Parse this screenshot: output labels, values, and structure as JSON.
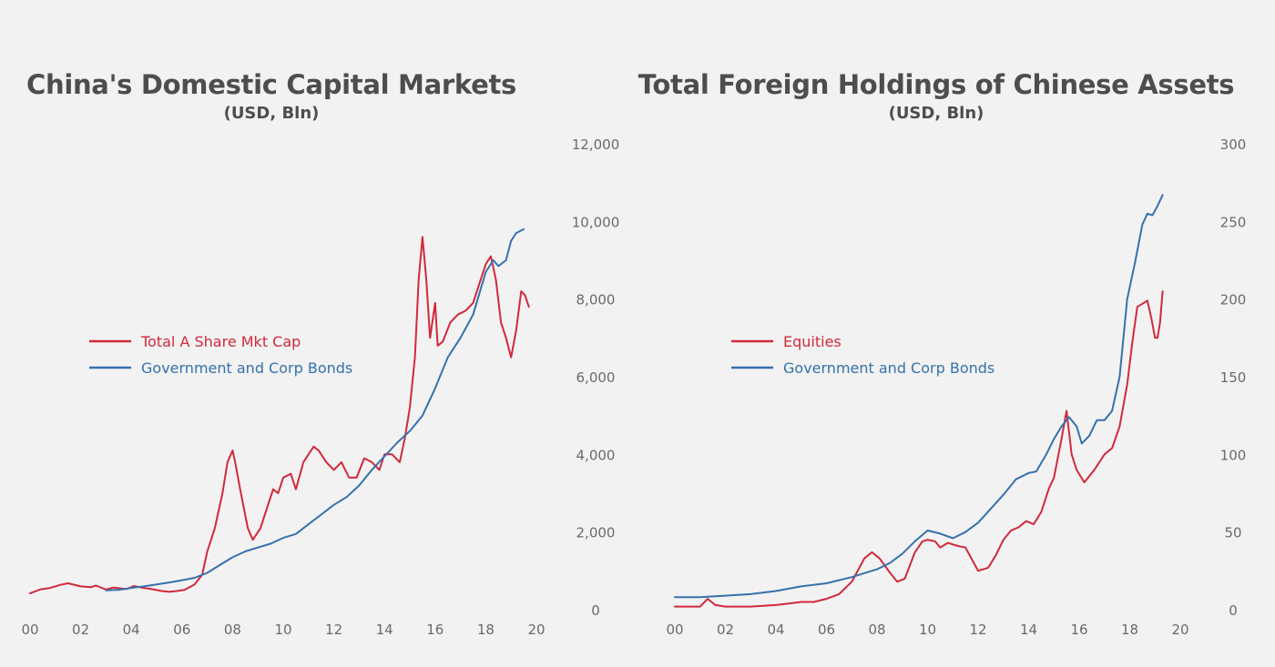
{
  "colors": {
    "red": "#d1293a",
    "blue": "#3571ad",
    "text": "#4d4d4d",
    "tick": "#6a6a6a"
  },
  "chart_data": [
    {
      "type": "line",
      "title": "China's Domestic Capital Markets",
      "subtitle": "(USD, Bln)",
      "xlim": [
        2000,
        2020
      ],
      "xticks": [
        {
          "v": 2000,
          "label": "00"
        },
        {
          "v": 2002,
          "label": "02"
        },
        {
          "v": 2004,
          "label": "04"
        },
        {
          "v": 2006,
          "label": "06"
        },
        {
          "v": 2008,
          "label": "08"
        },
        {
          "v": 2010,
          "label": "10"
        },
        {
          "v": 2012,
          "label": "12"
        },
        {
          "v": 2014,
          "label": "14"
        },
        {
          "v": 2016,
          "label": "16"
        },
        {
          "v": 2018,
          "label": "18"
        },
        {
          "v": 2020,
          "label": "20"
        }
      ],
      "ylim": [
        0,
        12000
      ],
      "yticks": [
        {
          "v": 0,
          "label": "0"
        },
        {
          "v": 2000,
          "label": "2,000"
        },
        {
          "v": 4000,
          "label": "4,000"
        },
        {
          "v": 6000,
          "label": "6,000"
        },
        {
          "v": 8000,
          "label": "8,000"
        },
        {
          "v": 10000,
          "label": "10,000"
        },
        {
          "v": 12000,
          "label": "12,000"
        }
      ],
      "legend_position": "left-center",
      "series": [
        {
          "name": "Total A Share Mkt Cap",
          "color": "#d1293a",
          "points": [
            [
              2000.0,
              420
            ],
            [
              2000.4,
              520
            ],
            [
              2000.8,
              560
            ],
            [
              2001.2,
              640
            ],
            [
              2001.5,
              680
            ],
            [
              2002.0,
              600
            ],
            [
              2002.4,
              580
            ],
            [
              2002.6,
              620
            ],
            [
              2003.0,
              520
            ],
            [
              2003.3,
              570
            ],
            [
              2003.8,
              530
            ],
            [
              2004.1,
              610
            ],
            [
              2004.4,
              570
            ],
            [
              2004.8,
              530
            ],
            [
              2005.2,
              480
            ],
            [
              2005.5,
              460
            ],
            [
              2005.8,
              480
            ],
            [
              2006.1,
              510
            ],
            [
              2006.5,
              650
            ],
            [
              2006.8,
              900
            ],
            [
              2007.0,
              1500
            ],
            [
              2007.3,
              2100
            ],
            [
              2007.6,
              3000
            ],
            [
              2007.8,
              3800
            ],
            [
              2008.0,
              4100
            ],
            [
              2008.1,
              3800
            ],
            [
              2008.3,
              3100
            ],
            [
              2008.6,
              2100
            ],
            [
              2008.8,
              1800
            ],
            [
              2009.1,
              2100
            ],
            [
              2009.4,
              2700
            ],
            [
              2009.6,
              3100
            ],
            [
              2009.8,
              3000
            ],
            [
              2010.0,
              3400
            ],
            [
              2010.3,
              3500
            ],
            [
              2010.5,
              3100
            ],
            [
              2010.8,
              3800
            ],
            [
              2011.0,
              4000
            ],
            [
              2011.2,
              4200
            ],
            [
              2011.4,
              4100
            ],
            [
              2011.7,
              3800
            ],
            [
              2012.0,
              3600
            ],
            [
              2012.3,
              3800
            ],
            [
              2012.6,
              3400
            ],
            [
              2012.9,
              3400
            ],
            [
              2013.2,
              3900
            ],
            [
              2013.5,
              3800
            ],
            [
              2013.8,
              3600
            ],
            [
              2014.0,
              4000
            ],
            [
              2014.3,
              4000
            ],
            [
              2014.6,
              3800
            ],
            [
              2014.8,
              4400
            ],
            [
              2015.0,
              5200
            ],
            [
              2015.2,
              6500
            ],
            [
              2015.35,
              8500
            ],
            [
              2015.5,
              9600
            ],
            [
              2015.65,
              8500
            ],
            [
              2015.8,
              7000
            ],
            [
              2016.0,
              7900
            ],
            [
              2016.1,
              6800
            ],
            [
              2016.3,
              6900
            ],
            [
              2016.6,
              7400
            ],
            [
              2016.9,
              7600
            ],
            [
              2017.2,
              7700
            ],
            [
              2017.5,
              7900
            ],
            [
              2017.8,
              8500
            ],
            [
              2018.0,
              8900
            ],
            [
              2018.2,
              9100
            ],
            [
              2018.4,
              8500
            ],
            [
              2018.6,
              7400
            ],
            [
              2018.8,
              7000
            ],
            [
              2019.0,
              6500
            ],
            [
              2019.2,
              7200
            ],
            [
              2019.4,
              8200
            ],
            [
              2019.55,
              8100
            ],
            [
              2019.7,
              7800
            ]
          ]
        },
        {
          "name": "Government and Corp Bonds",
          "color": "#3571ad",
          "points": [
            [
              2003.0,
              500
            ],
            [
              2003.5,
              510
            ],
            [
              2004.0,
              560
            ],
            [
              2004.5,
              600
            ],
            [
              2005.0,
              650
            ],
            [
              2005.5,
              700
            ],
            [
              2006.0,
              760
            ],
            [
              2006.5,
              820
            ],
            [
              2007.0,
              950
            ],
            [
              2007.5,
              1150
            ],
            [
              2008.0,
              1350
            ],
            [
              2008.5,
              1500
            ],
            [
              2009.0,
              1600
            ],
            [
              2009.5,
              1700
            ],
            [
              2010.0,
              1850
            ],
            [
              2010.5,
              1950
            ],
            [
              2011.0,
              2200
            ],
            [
              2011.5,
              2450
            ],
            [
              2012.0,
              2700
            ],
            [
              2012.5,
              2900
            ],
            [
              2013.0,
              3200
            ],
            [
              2013.5,
              3600
            ],
            [
              2014.0,
              3950
            ],
            [
              2014.5,
              4300
            ],
            [
              2015.0,
              4600
            ],
            [
              2015.5,
              5000
            ],
            [
              2016.0,
              5700
            ],
            [
              2016.5,
              6500
            ],
            [
              2017.0,
              7000
            ],
            [
              2017.5,
              7600
            ],
            [
              2018.0,
              8700
            ],
            [
              2018.3,
              9000
            ],
            [
              2018.5,
              8850
            ],
            [
              2018.8,
              9000
            ],
            [
              2019.0,
              9500
            ],
            [
              2019.2,
              9700
            ],
            [
              2019.5,
              9800
            ]
          ]
        }
      ]
    },
    {
      "type": "line",
      "title": "Total Foreign Holdings of Chinese Assets",
      "subtitle": "(USD, Bln)",
      "xlim": [
        2000,
        2020
      ],
      "xticks": [
        {
          "v": 2000,
          "label": "00"
        },
        {
          "v": 2002,
          "label": "02"
        },
        {
          "v": 2004,
          "label": "04"
        },
        {
          "v": 2006,
          "label": "06"
        },
        {
          "v": 2008,
          "label": "08"
        },
        {
          "v": 2010,
          "label": "10"
        },
        {
          "v": 2012,
          "label": "12"
        },
        {
          "v": 2014,
          "label": "14"
        },
        {
          "v": 2016,
          "label": "16"
        },
        {
          "v": 2018,
          "label": "18"
        },
        {
          "v": 2020,
          "label": "20"
        }
      ],
      "ylim": [
        0,
        300
      ],
      "yticks": [
        {
          "v": 0,
          "label": "0"
        },
        {
          "v": 50,
          "label": "50"
        },
        {
          "v": 100,
          "label": "100"
        },
        {
          "v": 150,
          "label": "150"
        },
        {
          "v": 200,
          "label": "200"
        },
        {
          "v": 250,
          "label": "250"
        },
        {
          "v": 300,
          "label": "300"
        }
      ],
      "legend_position": "left-center",
      "series": [
        {
          "name": "Equities",
          "color": "#d1293a",
          "points": [
            [
              2000.0,
              2
            ],
            [
              2001.0,
              2
            ],
            [
              2001.3,
              7
            ],
            [
              2001.6,
              3
            ],
            [
              2002.0,
              2
            ],
            [
              2003.0,
              2
            ],
            [
              2004.0,
              3
            ],
            [
              2004.5,
              4
            ],
            [
              2005.0,
              5
            ],
            [
              2005.5,
              5
            ],
            [
              2006.0,
              7
            ],
            [
              2006.5,
              10
            ],
            [
              2007.0,
              18
            ],
            [
              2007.5,
              33
            ],
            [
              2007.8,
              37
            ],
            [
              2008.1,
              33
            ],
            [
              2008.5,
              24
            ],
            [
              2008.8,
              18
            ],
            [
              2009.1,
              20
            ],
            [
              2009.5,
              37
            ],
            [
              2009.8,
              44
            ],
            [
              2010.0,
              45
            ],
            [
              2010.3,
              44
            ],
            [
              2010.5,
              40
            ],
            [
              2010.8,
              43
            ],
            [
              2011.2,
              41
            ],
            [
              2011.5,
              40
            ],
            [
              2012.0,
              25
            ],
            [
              2012.4,
              27
            ],
            [
              2012.7,
              35
            ],
            [
              2013.0,
              45
            ],
            [
              2013.3,
              51
            ],
            [
              2013.6,
              53
            ],
            [
              2013.9,
              57
            ],
            [
              2014.2,
              55
            ],
            [
              2014.5,
              63
            ],
            [
              2014.8,
              78
            ],
            [
              2015.0,
              85
            ],
            [
              2015.3,
              110
            ],
            [
              2015.5,
              128
            ],
            [
              2015.7,
              100
            ],
            [
              2015.9,
              90
            ],
            [
              2016.2,
              82
            ],
            [
              2016.6,
              90
            ],
            [
              2017.0,
              100
            ],
            [
              2017.3,
              104
            ],
            [
              2017.6,
              118
            ],
            [
              2017.9,
              145
            ],
            [
              2018.1,
              172
            ],
            [
              2018.3,
              195
            ],
            [
              2018.5,
              197
            ],
            [
              2018.7,
              199
            ],
            [
              2018.85,
              188
            ],
            [
              2019.0,
              175
            ],
            [
              2019.1,
              175
            ],
            [
              2019.2,
              185
            ],
            [
              2019.3,
              205
            ]
          ]
        },
        {
          "name": "Government and Corp Bonds",
          "color": "#3571ad",
          "points": [
            [
              2000.0,
              8
            ],
            [
              2001.0,
              8
            ],
            [
              2002.0,
              9
            ],
            [
              2003.0,
              10
            ],
            [
              2004.0,
              12
            ],
            [
              2005.0,
              15
            ],
            [
              2006.0,
              17
            ],
            [
              2007.0,
              21
            ],
            [
              2008.0,
              26
            ],
            [
              2008.5,
              30
            ],
            [
              2009.0,
              36
            ],
            [
              2009.5,
              44
            ],
            [
              2010.0,
              51
            ],
            [
              2010.5,
              49
            ],
            [
              2011.0,
              46
            ],
            [
              2011.5,
              50
            ],
            [
              2012.0,
              56
            ],
            [
              2012.5,
              65
            ],
            [
              2013.0,
              74
            ],
            [
              2013.5,
              84
            ],
            [
              2014.0,
              88
            ],
            [
              2014.3,
              89
            ],
            [
              2014.7,
              100
            ],
            [
              2015.0,
              110
            ],
            [
              2015.3,
              118
            ],
            [
              2015.6,
              124
            ],
            [
              2015.9,
              118
            ],
            [
              2016.1,
              107
            ],
            [
              2016.4,
              112
            ],
            [
              2016.7,
              122
            ],
            [
              2017.0,
              122
            ],
            [
              2017.3,
              128
            ],
            [
              2017.6,
              150
            ],
            [
              2017.9,
              200
            ],
            [
              2018.2,
              223
            ],
            [
              2018.5,
              248
            ],
            [
              2018.7,
              255
            ],
            [
              2018.9,
              254
            ],
            [
              2019.1,
              260
            ],
            [
              2019.3,
              267
            ]
          ]
        }
      ]
    }
  ]
}
